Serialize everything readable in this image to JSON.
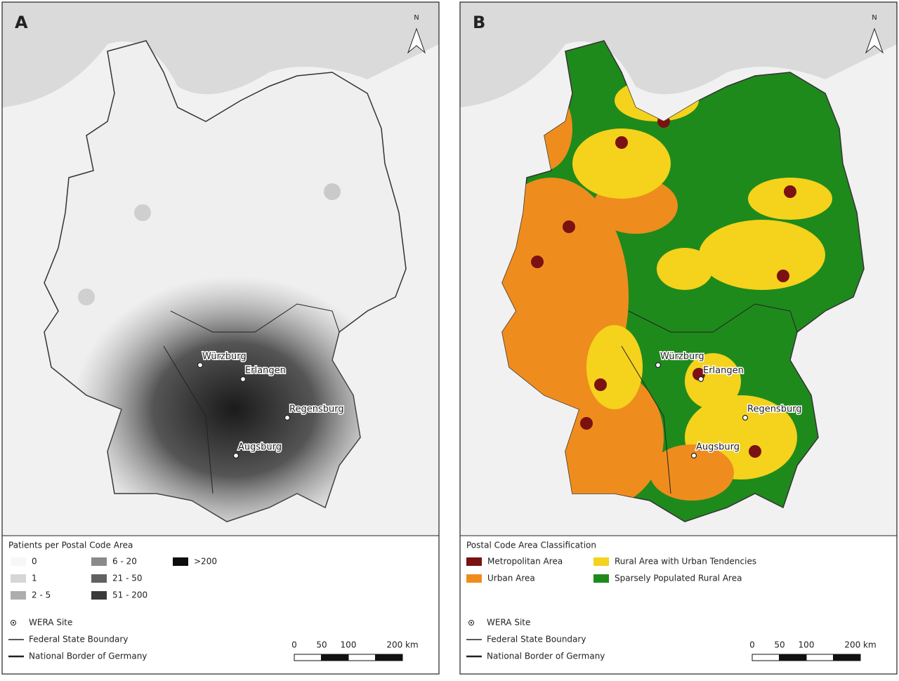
{
  "panels": [
    {
      "label": "A",
      "north": "N",
      "sites": [
        "Würzburg",
        "Erlangen",
        "Regensburg",
        "Augsburg"
      ],
      "legend": {
        "title": "Patients per Postal Code Area",
        "classes": [
          {
            "label": "0",
            "color": "#f7f7f7"
          },
          {
            "label": "1",
            "color": "#d6d6d6"
          },
          {
            "label": "2 - 5",
            "color": "#adadad"
          },
          {
            "label": "6 - 20",
            "color": "#8a8a8a"
          },
          {
            "label": "21 - 50",
            "color": "#616161"
          },
          {
            "label": "51 - 200",
            "color": "#3a3a3a"
          },
          {
            "label": ">200",
            "color": "#0d0d0d"
          }
        ]
      },
      "symbols": [
        "WERA Site",
        "Federal State Boundary",
        "National Border of Germany"
      ],
      "scale": [
        "0",
        "50",
        "100",
        "200 km"
      ]
    },
    {
      "label": "B",
      "north": "N",
      "sites": [
        "Würzburg",
        "Erlangen",
        "Regensburg",
        "Augsburg"
      ],
      "legend": {
        "title": "Postal Code Area Classification",
        "classes": [
          {
            "label": "Metropolitan Area",
            "color": "#7b1111"
          },
          {
            "label": "Urban Area",
            "color": "#ef8c1e"
          },
          {
            "label": "Rural Area with Urban Tendencies",
            "color": "#f5d21c"
          },
          {
            "label": "Sparsely Populated Rural Area",
            "color": "#1f8a1c"
          }
        ]
      },
      "symbols": [
        "WERA Site",
        "Federal State Boundary",
        "National Border of Germany"
      ],
      "scale": [
        "0",
        "50",
        "100",
        "200 km"
      ]
    }
  ]
}
